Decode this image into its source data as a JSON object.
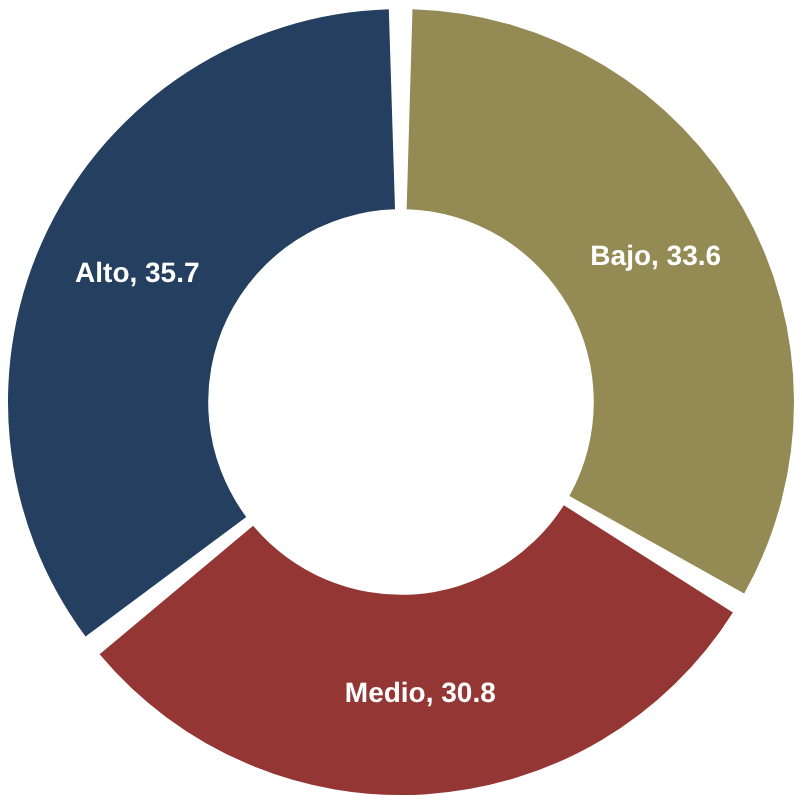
{
  "chart_data": {
    "type": "donut",
    "categories": [
      "Bajo",
      "Medio",
      "Alto"
    ],
    "values": [
      33.6,
      30.8,
      35.7
    ],
    "colors": [
      "#948a54",
      "#943634",
      "#243f60"
    ],
    "value_labels": [
      ", 33.6",
      ", 30.8",
      ", 35.7"
    ],
    "legend": false
  }
}
